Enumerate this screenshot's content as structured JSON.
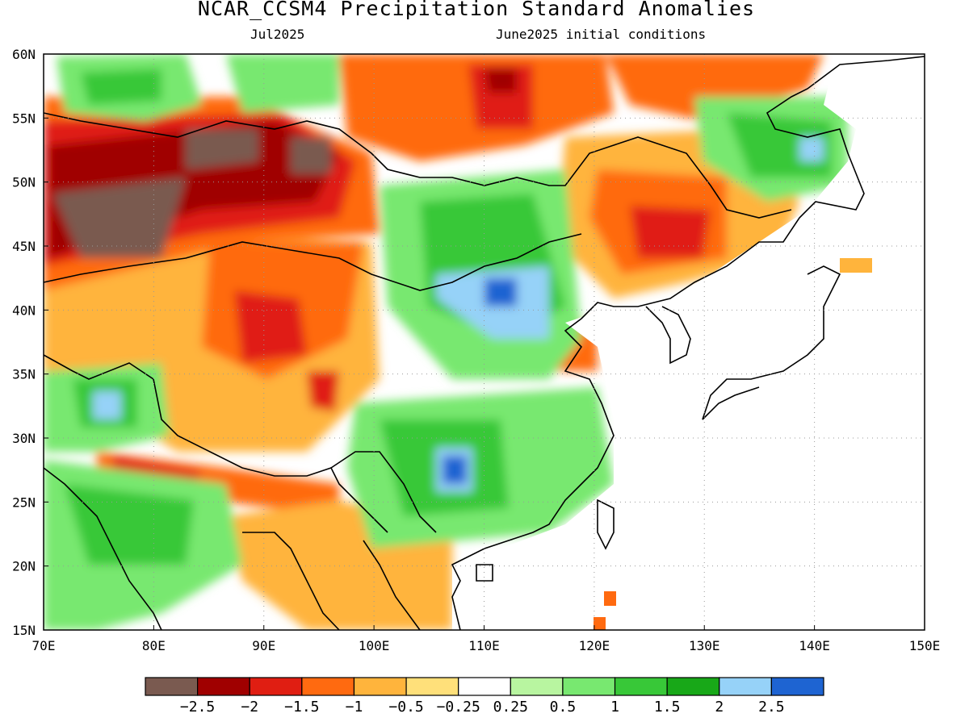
{
  "title": "NCAR_CCSM4 Precipitation Standard Anomalies",
  "subtitle_left": "Jul2025",
  "subtitle_right": "June2025 initial conditions",
  "map": {
    "lon_range": [
      70,
      150
    ],
    "lat_range": [
      15,
      60
    ],
    "lon_ticks": [
      "70E",
      "80E",
      "90E",
      "100E",
      "110E",
      "120E",
      "130E",
      "140E",
      "150E"
    ],
    "lat_ticks": [
      "60N",
      "55N",
      "50N",
      "45N",
      "40N",
      "35N",
      "30N",
      "25N",
      "20N",
      "15N"
    ]
  },
  "colorbar": {
    "colors": [
      "#7a5a50",
      "#a00000",
      "#e01e12",
      "#ff6a10",
      "#ffb43c",
      "#ffe07a",
      "#ffffff",
      "#b8f5a0",
      "#78e870",
      "#38c838",
      "#18a818",
      "#96d2f8",
      "#1e64d2"
    ],
    "labels": [
      "−2.5",
      "−2",
      "−1.5",
      "−1",
      "−0.5",
      "−0.25",
      "0.25",
      "0.5",
      "1",
      "1.5",
      "2",
      "2.5"
    ]
  },
  "anomaly_regions": [
    {
      "name": "kazakhstan-dry-core",
      "level": -2.5,
      "lon": 78,
      "lat": 47
    },
    {
      "name": "altai-dry-core",
      "level": -2.5,
      "lon": 92,
      "lat": 51.5
    },
    {
      "name": "northern-dry-band",
      "level": -2.0,
      "lon": 85,
      "lat": 49
    },
    {
      "name": "siberia-north-dry",
      "level": -2.0,
      "lon": 112,
      "lat": 57
    },
    {
      "name": "manchuria-dry",
      "level": -1.5,
      "lon": 123,
      "lat": 46
    },
    {
      "name": "tibet-dry",
      "level": -1.5,
      "lon": 92,
      "lat": 37
    },
    {
      "name": "himalaya-dry",
      "level": -1.5,
      "lon": 85,
      "lat": 28
    },
    {
      "name": "mongolia-wet",
      "level": 1.5,
      "lon": 106,
      "lat": 45
    },
    {
      "name": "north-china-wet",
      "level": 2.5,
      "lon": 112,
      "lat": 41
    },
    {
      "name": "south-china-wet",
      "level": 2.5,
      "lon": 108,
      "lat": 28
    },
    {
      "name": "kashmir-wet",
      "level": 2.0,
      "lon": 76,
      "lat": 32
    },
    {
      "name": "india-wet",
      "level": 1.5,
      "lon": 78,
      "lat": 24
    },
    {
      "name": "far-east-wet",
      "level": 1.5,
      "lon": 135,
      "lat": 52
    },
    {
      "name": "northwest-wet",
      "level": 1.5,
      "lon": 79,
      "lat": 57
    }
  ]
}
